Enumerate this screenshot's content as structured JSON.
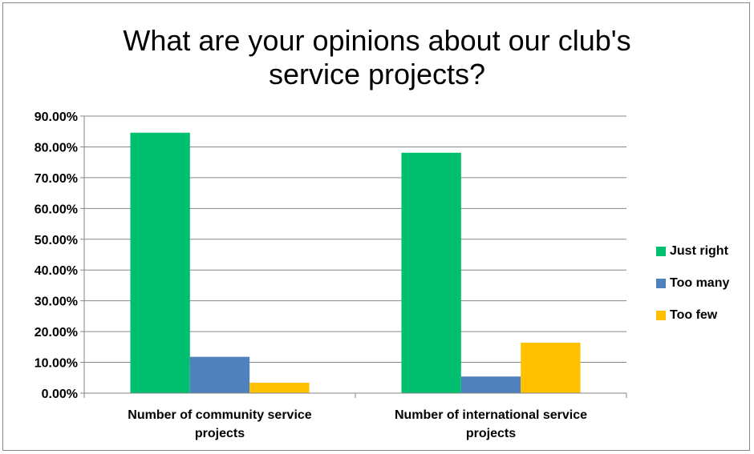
{
  "chart_data": {
    "type": "bar",
    "title": "What are your opinions about our club's service projects?",
    "categories": [
      "Number of community service projects",
      "Number of international service projects"
    ],
    "series": [
      {
        "name": "Just right",
        "color": "#00c070",
        "values": [
          0.846,
          0.781
        ]
      },
      {
        "name": "Too many",
        "color": "#4f81bd",
        "values": [
          0.118,
          0.054
        ]
      },
      {
        "name": "Too few",
        "color": "#ffc000",
        "values": [
          0.034,
          0.164
        ]
      }
    ],
    "ylim": [
      0,
      0.9
    ],
    "yticks": [
      "0.00%",
      "10.00%",
      "20.00%",
      "30.00%",
      "40.00%",
      "50.00%",
      "60.00%",
      "70.00%",
      "80.00%",
      "90.00%"
    ],
    "grid": true,
    "legend_position": "right"
  }
}
